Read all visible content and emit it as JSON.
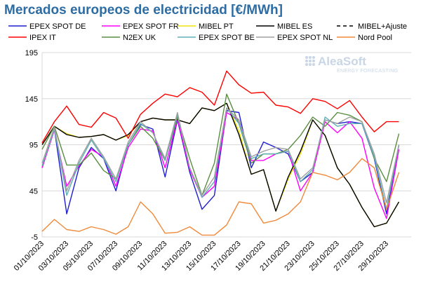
{
  "chart_data": {
    "type": "line",
    "title": "Mercados europeos de electricidad [€/MWh]",
    "logo": {
      "name": "AleaSoft",
      "tagline": "ENERGY FORECASTING"
    },
    "ylim": [
      -5,
      195
    ],
    "yticks": [
      -5,
      45,
      95,
      145,
      195
    ],
    "grid": true,
    "legend_placement": "top",
    "xticks": [
      "01/10/2023",
      "03/10/2023",
      "05/10/2023",
      "07/10/2023",
      "09/10/2023",
      "11/10/2023",
      "13/10/2023",
      "15/10/2023",
      "17/10/2023",
      "19/10/2023",
      "21/10/2023",
      "23/10/2023",
      "25/10/2023",
      "27/10/2023",
      "29/10/2023"
    ],
    "x": [
      "01/10/2023",
      "02/10/2023",
      "03/10/2023",
      "04/10/2023",
      "05/10/2023",
      "06/10/2023",
      "07/10/2023",
      "08/10/2023",
      "09/10/2023",
      "10/10/2023",
      "11/10/2023",
      "12/10/2023",
      "13/10/2023",
      "14/10/2023",
      "15/10/2023",
      "16/10/2023",
      "17/10/2023",
      "18/10/2023",
      "19/10/2023",
      "20/10/2023",
      "21/10/2023",
      "22/10/2023",
      "23/10/2023",
      "24/10/2023",
      "25/10/2023",
      "26/10/2023",
      "27/10/2023",
      "28/10/2023",
      "29/10/2023",
      "30/10/2023",
      "31/10/2023"
    ],
    "series": [
      {
        "name": "EPEX SPOT DE",
        "color": "#1f1fd1",
        "dash": "",
        "values": [
          70,
          112,
          20,
          70,
          92,
          80,
          45,
          95,
          117,
          112,
          60,
          122,
          65,
          25,
          40,
          132,
          130,
          70,
          98,
          92,
          85,
          55,
          65,
          122,
          118,
          120,
          118,
          80,
          20,
          95,
          null
        ]
      },
      {
        "name": "EPEX SPOT FR",
        "color": "#ff00ff",
        "dash": "",
        "values": [
          70,
          111,
          50,
          72,
          90,
          82,
          50,
          92,
          112,
          110,
          70,
          123,
          68,
          38,
          50,
          130,
          122,
          78,
          78,
          85,
          88,
          45,
          65,
          120,
          108,
          120,
          102,
          48,
          15,
          90,
          null
        ]
      },
      {
        "name": "MIBEL PT",
        "color": "#f2e411",
        "dash": "",
        "values": [
          95,
          115,
          107,
          103,
          104,
          106,
          100,
          105,
          120,
          124,
          122,
          122,
          118,
          135,
          132,
          140,
          110,
          63,
          68,
          23,
          58,
          85,
          122,
          105,
          70,
          52,
          27,
          6,
          10,
          33,
          null
        ]
      },
      {
        "name": "MIBEL ES",
        "color": "#000000",
        "dash": "",
        "values": [
          95,
          115,
          106,
          103,
          104,
          106,
          100,
          106,
          120,
          124,
          122,
          122,
          118,
          135,
          132,
          140,
          106,
          63,
          68,
          23,
          60,
          88,
          122,
          105,
          70,
          52,
          27,
          6,
          10,
          33,
          null
        ]
      },
      {
        "name": "MIBEL+Ajuste",
        "color": "#000000",
        "dash": "5,4",
        "values": [
          null,
          null,
          null,
          null,
          null,
          null,
          null,
          null,
          null,
          null,
          null,
          null,
          null,
          null,
          null,
          null,
          null,
          null,
          null,
          null,
          null,
          null,
          null,
          null,
          null,
          null,
          null,
          null,
          null,
          null,
          null
        ]
      },
      {
        "name": "IPEX IT",
        "color": "#ff0000",
        "dash": "",
        "values": [
          97,
          120,
          137,
          117,
          114,
          130,
          124,
          102,
          128,
          140,
          150,
          147,
          157,
          152,
          138,
          175,
          160,
          151,
          152,
          138,
          136,
          129,
          145,
          142,
          134,
          143,
          125,
          109,
          120,
          120,
          null
        ]
      },
      {
        "name": "N2EX UK",
        "color": "#5a8f42",
        "dash": "",
        "values": [
          90,
          115,
          73,
          73,
          86,
          67,
          58,
          95,
          115,
          102,
          78,
          125,
          80,
          40,
          75,
          150,
          118,
          75,
          85,
          85,
          90,
          105,
          125,
          115,
          130,
          127,
          120,
          80,
          55,
          107,
          null
        ]
      },
      {
        "name": "EPEX SPOT BE",
        "color": "#5eb0b5",
        "dash": "",
        "values": [
          72,
          112,
          40,
          75,
          100,
          80,
          55,
          95,
          118,
          108,
          78,
          128,
          70,
          38,
          55,
          135,
          118,
          80,
          85,
          85,
          88,
          55,
          68,
          125,
          115,
          118,
          118,
          82,
          25,
          95,
          null
        ]
      },
      {
        "name": "EPEX SPOT NL",
        "color": "#a0a0a0",
        "dash": "",
        "values": [
          75,
          114,
          45,
          78,
          102,
          82,
          58,
          98,
          120,
          108,
          80,
          130,
          70,
          40,
          60,
          135,
          122,
          82,
          88,
          92,
          90,
          58,
          70,
          122,
          118,
          125,
          120,
          85,
          32,
          95,
          null
        ]
      },
      {
        "name": "Nord Pool",
        "color": "#f0893a",
        "dash": "",
        "values": [
          1,
          14,
          3,
          1,
          6,
          3,
          -2,
          6,
          33,
          20,
          -1,
          0,
          6,
          -3,
          -3,
          8,
          33,
          31,
          10,
          13,
          20,
          33,
          65,
          62,
          57,
          65,
          80,
          70,
          25,
          65,
          null
        ]
      }
    ]
  }
}
